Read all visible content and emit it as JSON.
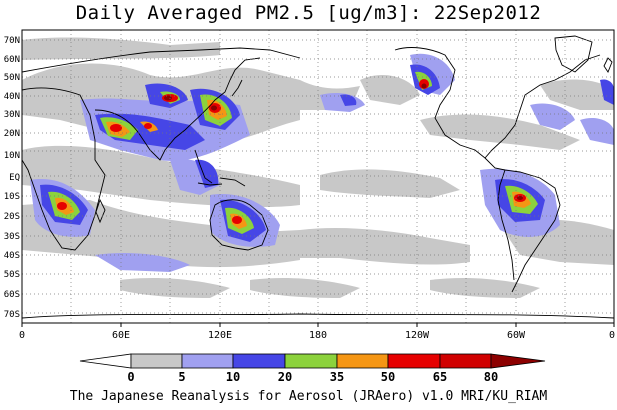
{
  "title": "Daily Averaged PM2.5 [ug/m3]: 22Sep2012",
  "footer": "The Japanese Reanalysis for Aerosol (JRAero) v1.0 MRI/KU_RIAM",
  "map": {
    "lat_labels": [
      "70N",
      "60N",
      "50N",
      "40N",
      "30N",
      "20N",
      "10N",
      "EQ",
      "10S",
      "20S",
      "30S",
      "40S",
      "50S",
      "60S",
      "70S"
    ],
    "lon_labels": [
      "0",
      "60E",
      "120E",
      "180",
      "120W",
      "60W",
      "0"
    ]
  },
  "colorbar": {
    "ticks": [
      "0",
      "5",
      "10",
      "20",
      "35",
      "50",
      "65",
      "80"
    ],
    "colors": [
      "#ffffff",
      "#c8c8c8",
      "#a0a0f0",
      "#4646e6",
      "#8cd23c",
      "#f59614",
      "#e60000",
      "#8c0000"
    ]
  }
}
